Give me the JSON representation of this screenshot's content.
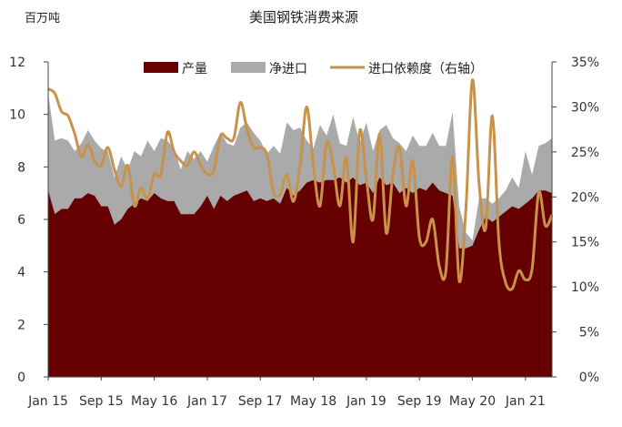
{
  "chart_data": {
    "type": "area",
    "title": "美国钢铁消费来源",
    "ylabel": "百万吨",
    "ylim": [
      0,
      12
    ],
    "yticks": [
      "0",
      "2",
      "4",
      "6",
      "8",
      "10",
      "12"
    ],
    "y2lim": [
      0,
      35
    ],
    "y2ticks": [
      "0%",
      "5%",
      "10%",
      "15%",
      "20%",
      "25%",
      "30%",
      "35%"
    ],
    "x_ticks": [
      "Jan 15",
      "Sep 15",
      "May 16",
      "Jan 17",
      "Sep 17",
      "May 18",
      "Jan 19",
      "Sep 19",
      "May 20",
      "Jan 21"
    ],
    "grid": false,
    "legend_position": "top",
    "colors": {
      "production": "#660000",
      "net_imports": "#aaaaaa",
      "import_dependence": "#c8924a"
    },
    "x": [
      "2015-01",
      "2015-02",
      "2015-03",
      "2015-04",
      "2015-05",
      "2015-06",
      "2015-07",
      "2015-08",
      "2015-09",
      "2015-10",
      "2015-11",
      "2015-12",
      "2016-01",
      "2016-02",
      "2016-03",
      "2016-04",
      "2016-05",
      "2016-06",
      "2016-07",
      "2016-08",
      "2016-09",
      "2016-10",
      "2016-11",
      "2016-12",
      "2017-01",
      "2017-02",
      "2017-03",
      "2017-04",
      "2017-05",
      "2017-06",
      "2017-07",
      "2017-08",
      "2017-09",
      "2017-10",
      "2017-11",
      "2017-12",
      "2018-01",
      "2018-02",
      "2018-03",
      "2018-04",
      "2018-05",
      "2018-06",
      "2018-07",
      "2018-08",
      "2018-09",
      "2018-10",
      "2018-11",
      "2018-12",
      "2019-01",
      "2019-02",
      "2019-03",
      "2019-04",
      "2019-05",
      "2019-06",
      "2019-07",
      "2019-08",
      "2019-09",
      "2019-10",
      "2019-11",
      "2019-12",
      "2020-01",
      "2020-02",
      "2020-03",
      "2020-04",
      "2020-05",
      "2020-06",
      "2020-07",
      "2020-08",
      "2020-09",
      "2020-10",
      "2020-11",
      "2020-12",
      "2021-01",
      "2021-02",
      "2021-03",
      "2021-04",
      "2021-05"
    ],
    "series": [
      {
        "name": "产量",
        "axis": "left",
        "kind": "area",
        "values": [
          7.1,
          6.2,
          6.4,
          6.4,
          6.8,
          6.8,
          7.0,
          6.9,
          6.5,
          6.5,
          5.8,
          6.0,
          6.4,
          6.6,
          6.8,
          6.7,
          7.0,
          6.8,
          6.7,
          6.7,
          6.2,
          6.2,
          6.2,
          6.5,
          6.9,
          6.4,
          6.9,
          6.7,
          6.9,
          7.0,
          7.1,
          6.7,
          6.8,
          6.7,
          6.8,
          6.6,
          7.2,
          6.9,
          7.1,
          7.4,
          7.5,
          7.4,
          7.5,
          7.5,
          7.6,
          7.4,
          7.6,
          7.3,
          7.4,
          7.0,
          7.6,
          7.3,
          7.4,
          7.0,
          7.2,
          7.0,
          7.2,
          7.1,
          7.4,
          7.1,
          7.0,
          6.9,
          4.9,
          4.9,
          5.0,
          5.6,
          6.1,
          5.9,
          6.1,
          6.3,
          6.5,
          6.4,
          6.6,
          6.8,
          7.1,
          7.1,
          7.0
        ]
      },
      {
        "name": "净进口",
        "axis": "left",
        "kind": "stacked-area",
        "values": [
          10.8,
          9.0,
          9.1,
          9.0,
          8.6,
          8.9,
          9.4,
          9.0,
          8.7,
          8.6,
          7.6,
          8.4,
          7.9,
          8.6,
          8.4,
          9.0,
          8.6,
          9.1,
          9.0,
          8.7,
          7.9,
          8.6,
          8.3,
          8.6,
          8.2,
          8.8,
          9.3,
          8.9,
          8.8,
          9.5,
          9.7,
          9.3,
          9.0,
          8.5,
          8.8,
          8.5,
          9.7,
          9.4,
          9.5,
          9.0,
          8.7,
          9.6,
          9.2,
          10.0,
          8.9,
          8.8,
          9.9,
          8.9,
          9.7,
          8.6,
          9.4,
          9.6,
          9.1,
          8.9,
          8.6,
          9.2,
          8.8,
          8.8,
          9.3,
          8.8,
          8.8,
          10.1,
          6.5,
          5.5,
          5.2,
          6.8,
          6.8,
          6.6,
          6.8,
          7.1,
          7.6,
          7.2,
          8.6,
          7.7,
          8.8,
          8.9,
          9.1
        ]
      },
      {
        "name": "进口依赖度（右轴）",
        "axis": "right",
        "kind": "line",
        "values": [
          32.0,
          31.5,
          29.5,
          29.0,
          27.0,
          24.5,
          25.8,
          24.0,
          23.5,
          25.5,
          23.0,
          21.2,
          23.5,
          19.0,
          21.0,
          19.8,
          22.5,
          22.5,
          27.2,
          25.0,
          24.0,
          23.5,
          25.0,
          23.5,
          22.5,
          23.0,
          26.8,
          26.5,
          26.5,
          30.5,
          27.5,
          25.5,
          25.5,
          24.7,
          20.5,
          20.3,
          22.5,
          19.5,
          23.5,
          30.0,
          23.5,
          19.0,
          26.0,
          23.5,
          19.0,
          24.3,
          15.0,
          27.3,
          22.0,
          17.5,
          27.0,
          16.0,
          22.5,
          25.5,
          19.0,
          24.0,
          15.5,
          15.0,
          17.5,
          12.3,
          11.8,
          24.5,
          10.7,
          18.5,
          33.0,
          21.5,
          16.5,
          29.0,
          15.0,
          10.5,
          9.8,
          11.8,
          10.8,
          12.0,
          20.5,
          16.8,
          18.0
        ]
      }
    ]
  }
}
